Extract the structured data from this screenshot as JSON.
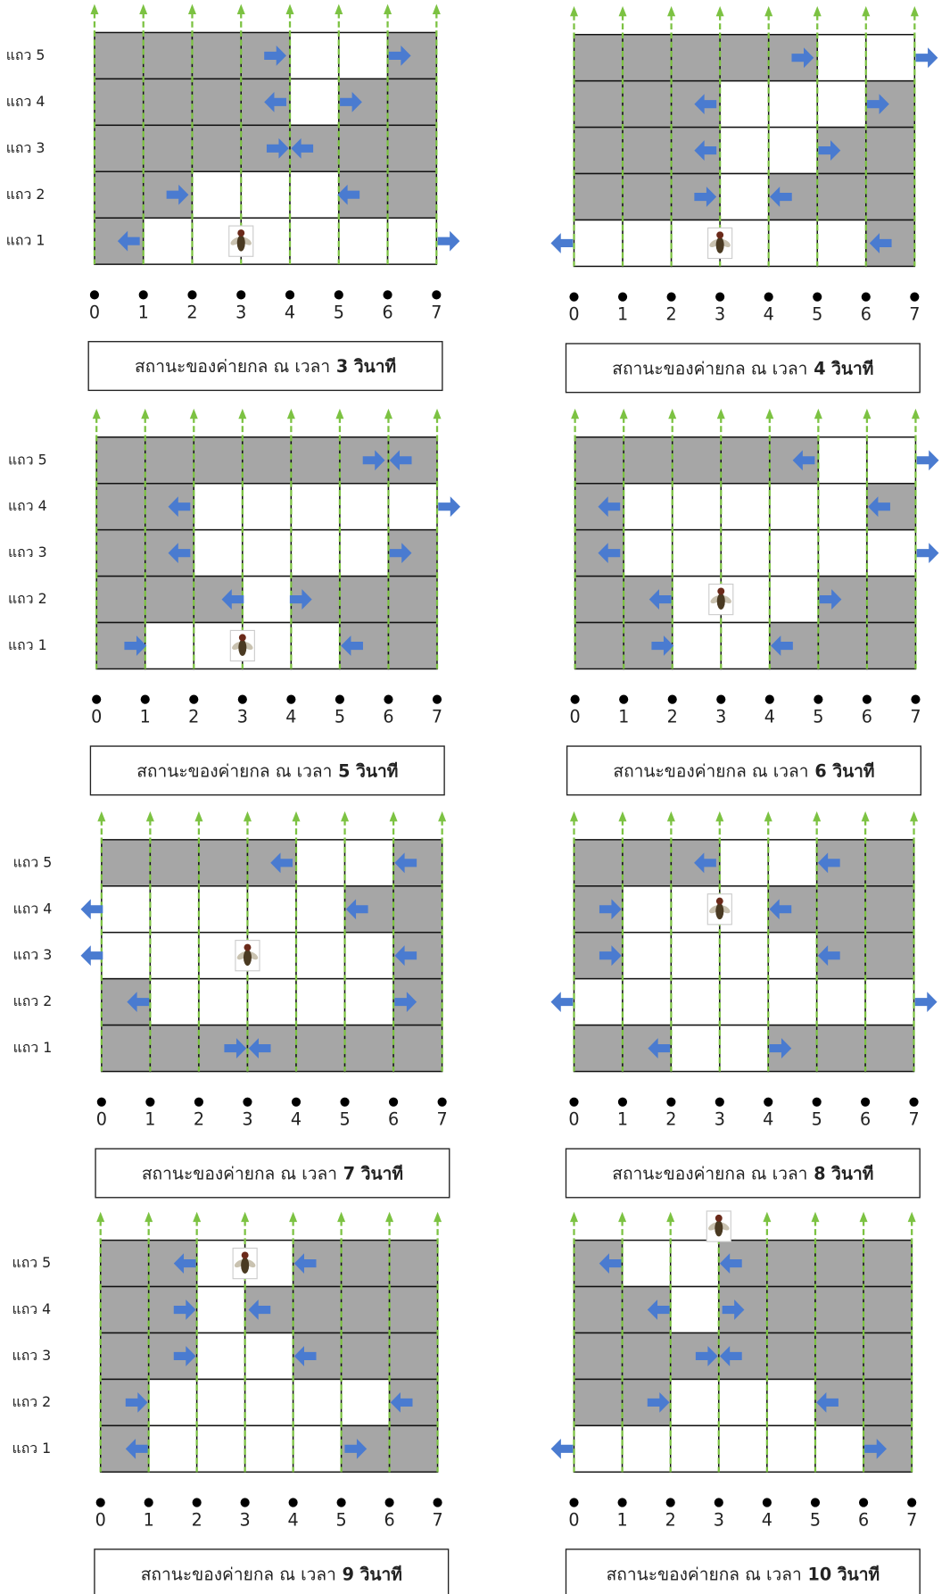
{
  "panels": [
    {
      "row_labels": [
        "แถว 5",
        "แถว 4",
        "แถว 3",
        "แถว 2",
        "แถว 1"
      ],
      "axis_labels": [
        "0",
        "1",
        "2",
        "3",
        "4",
        "5",
        "6",
        "7"
      ],
      "caption": {
        "text": "สถานะของค่ายกล ณ เวลา",
        "time": "3 วินาที"
      }
    },
    {
      "axis_labels": [
        "0",
        "1",
        "2",
        "3",
        "4",
        "5",
        "6",
        "7"
      ],
      "caption": {
        "text": "สถานะของค่ายกล ณ เวลา",
        "time": "4 วินาที"
      }
    },
    {
      "row_labels": [
        "แถว 5",
        "แถว 4",
        "แถว 3",
        "แถว 2",
        "แถว 1"
      ],
      "axis_labels": [
        "0",
        "1",
        "2",
        "3",
        "4",
        "5",
        "6",
        "7"
      ],
      "caption": {
        "text": "สถานะของค่ายกล ณ เวลา",
        "time": "5 วินาที"
      }
    },
    {
      "axis_labels": [
        "0",
        "1",
        "2",
        "3",
        "4",
        "5",
        "6",
        "7"
      ],
      "caption": {
        "text": "สถานะของค่ายกล ณ เวลา",
        "time": "6 วินาที"
      }
    },
    {
      "row_labels": [
        "แถว 5",
        "แถว 4",
        "แถว 3",
        "แถว 2",
        "แถว 1"
      ],
      "axis_labels": [
        "0",
        "1",
        "2",
        "3",
        "4",
        "5",
        "6",
        "7"
      ],
      "caption": {
        "text": "สถานะของค่ายกล ณ เวลา",
        "time": "7 วินาที"
      }
    },
    {
      "axis_labels": [
        "0",
        "1",
        "2",
        "3",
        "4",
        "5",
        "6",
        "7"
      ],
      "caption": {
        "text": "สถานะของค่ายกล ณ เวลา",
        "time": "8 วินาที"
      }
    },
    {
      "row_labels": [
        "แถว 5",
        "แถว 4",
        "แถว 3",
        "แถว 2",
        "แถว 1"
      ],
      "axis_labels": [
        "0",
        "1",
        "2",
        "3",
        "4",
        "5",
        "6",
        "7"
      ],
      "caption": {
        "text": "สถานะของค่ายกล ณ เวลา",
        "time": "9 วินาที"
      }
    },
    {
      "axis_labels": [
        "0",
        "1",
        "2",
        "3",
        "4",
        "5",
        "6",
        "7"
      ],
      "caption": {
        "text": "สถานะของค่ายกล ณ เวลา",
        "time": "10 วินาที"
      }
    }
  ]
}
